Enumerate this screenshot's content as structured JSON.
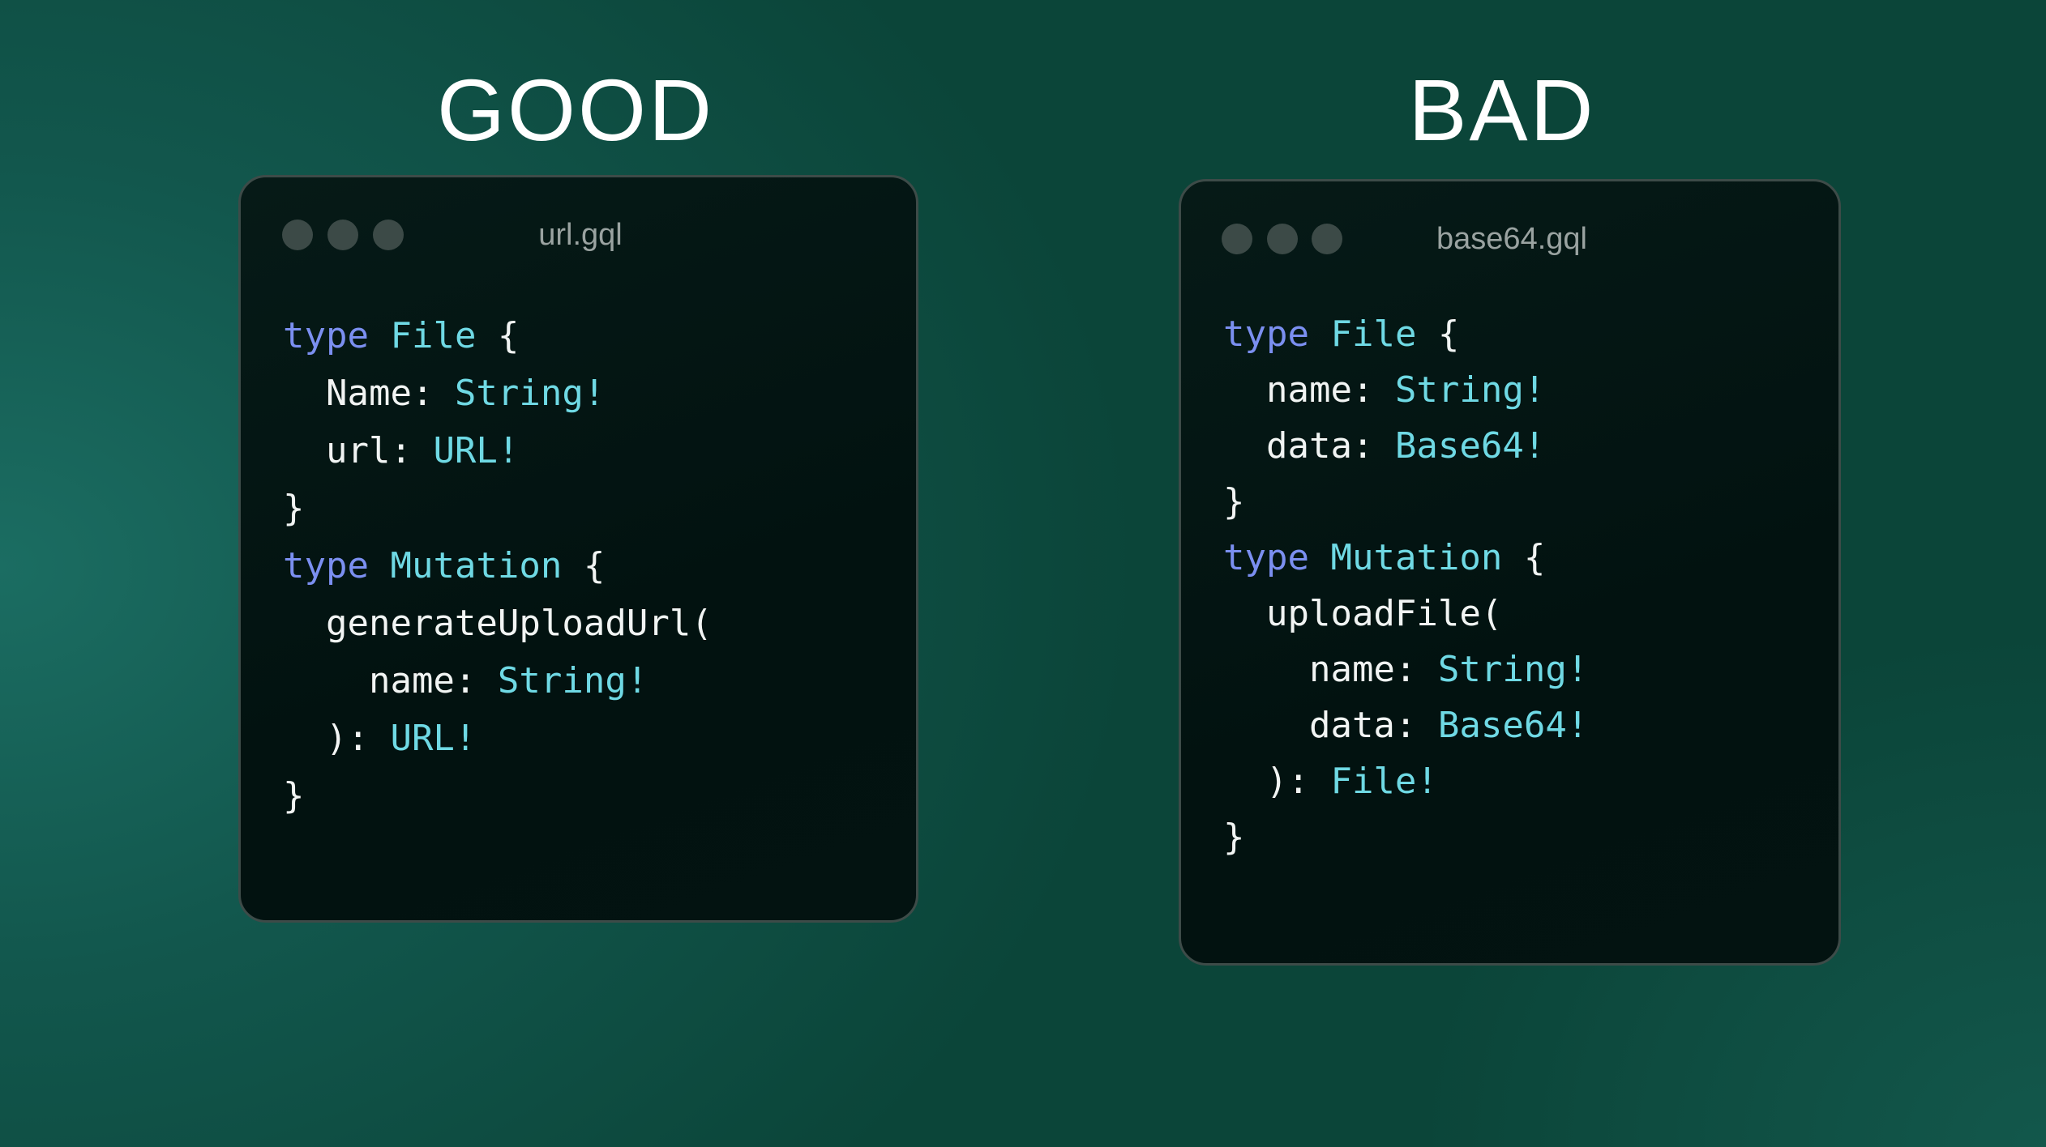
{
  "panels": [
    {
      "heading": "GOOD",
      "filename": "url.gql",
      "code": [
        [
          [
            "kw",
            "type"
          ],
          [
            "pl",
            " "
          ],
          [
            "ty",
            "File"
          ],
          [
            "pl",
            " {"
          ]
        ],
        [
          [
            "pl",
            "  Name: "
          ],
          [
            "ty",
            "String!"
          ]
        ],
        [
          [
            "pl",
            "  url: "
          ],
          [
            "ty",
            "URL!"
          ]
        ],
        [
          [
            "pl",
            "}"
          ]
        ],
        [
          [
            "kw",
            "type"
          ],
          [
            "pl",
            " "
          ],
          [
            "ty",
            "Mutation"
          ],
          [
            "pl",
            " {"
          ]
        ],
        [
          [
            "pl",
            "  generateUploadUrl("
          ]
        ],
        [
          [
            "pl",
            "    name: "
          ],
          [
            "ty",
            "String!"
          ]
        ],
        [
          [
            "pl",
            "  ): "
          ],
          [
            "ty",
            "URL!"
          ]
        ],
        [
          [
            "pl",
            "}"
          ]
        ]
      ]
    },
    {
      "heading": "BAD",
      "filename": "base64.gql",
      "code": [
        [
          [
            "kw",
            "type"
          ],
          [
            "pl",
            " "
          ],
          [
            "ty",
            "File"
          ],
          [
            "pl",
            " {"
          ]
        ],
        [
          [
            "pl",
            "  name: "
          ],
          [
            "ty",
            "String!"
          ]
        ],
        [
          [
            "pl",
            "  data: "
          ],
          [
            "ty",
            "Base64!"
          ]
        ],
        [
          [
            "pl",
            "}"
          ]
        ],
        [
          [
            "kw",
            "type"
          ],
          [
            "pl",
            " "
          ],
          [
            "ty",
            "Mutation"
          ],
          [
            "pl",
            " {"
          ]
        ],
        [
          [
            "pl",
            "  uploadFile("
          ]
        ],
        [
          [
            "pl",
            "    name: "
          ],
          [
            "ty",
            "String!"
          ]
        ],
        [
          [
            "pl",
            "    data: "
          ],
          [
            "ty",
            "Base64!"
          ]
        ],
        [
          [
            "pl",
            "  ): "
          ],
          [
            "ty",
            "File!"
          ]
        ],
        [
          [
            "pl",
            "}"
          ]
        ]
      ]
    }
  ],
  "colors": {
    "keyword": "#7b8ff0",
    "type": "#6fd9e4",
    "plain": "#f1f4f3",
    "window_bg": "#03110f"
  }
}
